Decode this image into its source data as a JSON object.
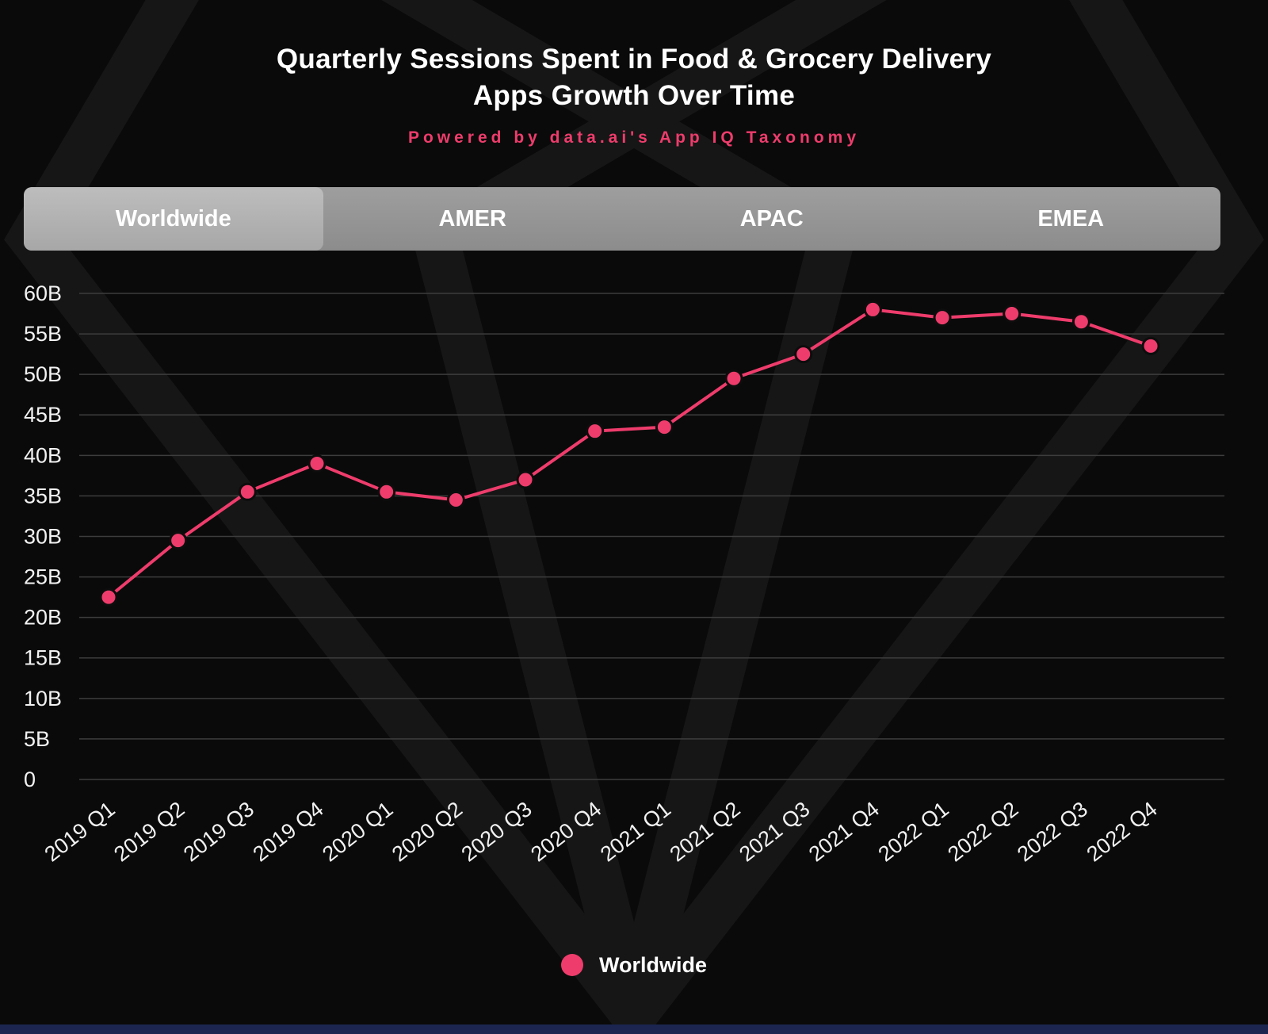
{
  "title": {
    "line1": "Quarterly Sessions Spent in Food & Grocery Delivery",
    "line2": "Apps Growth Over Time"
  },
  "subtitle": "Powered by data.ai's App IQ Taxonomy",
  "tabs": [
    {
      "label": "Worldwide",
      "selected": true
    },
    {
      "label": "AMER",
      "selected": false
    },
    {
      "label": "APAC",
      "selected": false
    },
    {
      "label": "EMEA",
      "selected": false
    }
  ],
  "legend": {
    "label": "Worldwide"
  },
  "colors": {
    "accent_pink": "#ee3c6c",
    "background": "#0a0a0a",
    "grid": "#3d3d3d",
    "bottom_bar": "#1b2550"
  },
  "chart_data": {
    "type": "line",
    "title": "Quarterly Sessions Spent in Food & Grocery Delivery Apps Growth Over Time",
    "subtitle": "Powered by data.ai's App IQ Taxonomy",
    "categories": [
      "2019 Q1",
      "2019 Q2",
      "2019 Q3",
      "2019 Q4",
      "2020 Q1",
      "2020 Q2",
      "2020 Q3",
      "2020 Q4",
      "2021 Q1",
      "2021 Q2",
      "2021 Q3",
      "2021 Q4",
      "2022 Q1",
      "2022 Q2",
      "2022 Q3",
      "2022 Q4"
    ],
    "series": [
      {
        "name": "Worldwide",
        "values": [
          22.5,
          29.5,
          35.5,
          39,
          35.5,
          34.5,
          37,
          43,
          43.5,
          49.5,
          52.5,
          58,
          57,
          57.5,
          56.5,
          53.5
        ]
      }
    ],
    "unit": "billions of sessions",
    "xlabel": "",
    "ylabel": "",
    "ylim": [
      0,
      62
    ],
    "y_tick_values": [
      0,
      5,
      10,
      15,
      20,
      25,
      30,
      35,
      40,
      45,
      50,
      55,
      60
    ],
    "y_tick_labels": [
      "0",
      "5B",
      "10B",
      "15B",
      "20B",
      "25B",
      "30B",
      "35B",
      "40B",
      "45B",
      "50B",
      "55B",
      "60B"
    ],
    "grid": true,
    "legend_position": "bottom"
  }
}
